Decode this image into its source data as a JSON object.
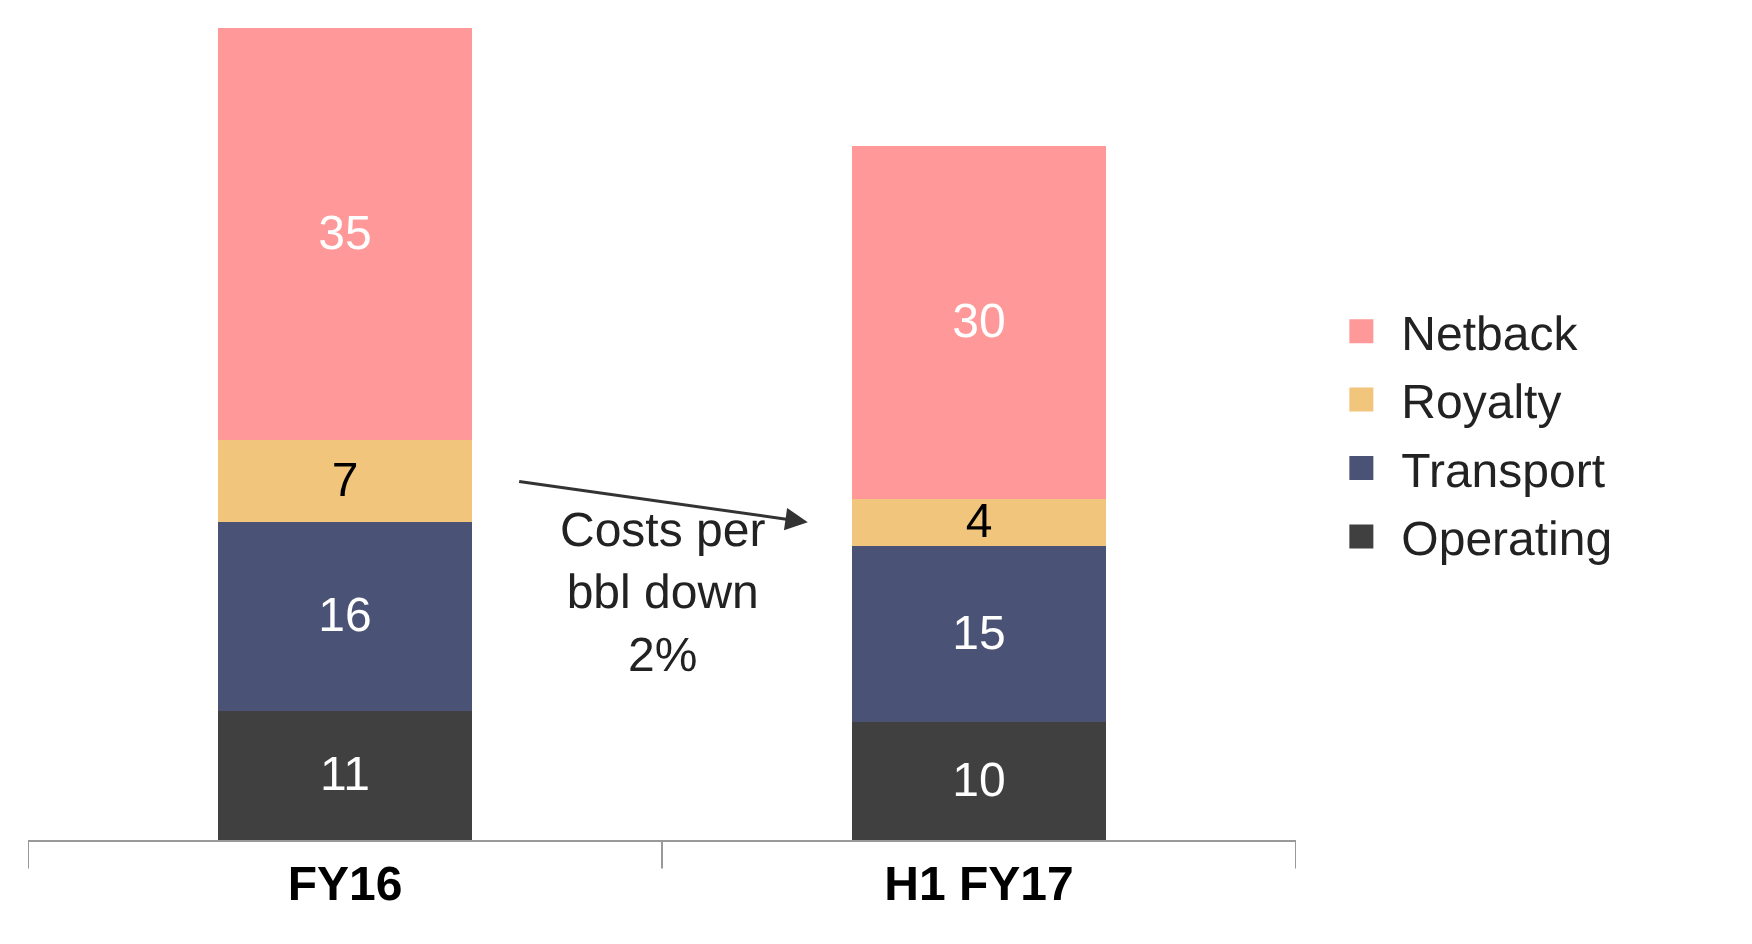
{
  "chart_data": {
    "type": "bar",
    "stacked": true,
    "data_labels": true,
    "legend": "right",
    "categories": [
      "FY16",
      "H1 FY17"
    ],
    "series": [
      {
        "name": "Operating",
        "color": "#404040",
        "values": [
          11,
          10
        ]
      },
      {
        "name": "Transport",
        "color": "#4a5275",
        "values": [
          16,
          15
        ]
      },
      {
        "name": "Royalty",
        "color": "#f2c57c",
        "values": [
          7,
          4
        ]
      },
      {
        "name": "Netback",
        "color": "#ff9999",
        "values": [
          35,
          30
        ]
      }
    ],
    "annotations": [
      "Costs per bbl down 2%"
    ]
  }
}
